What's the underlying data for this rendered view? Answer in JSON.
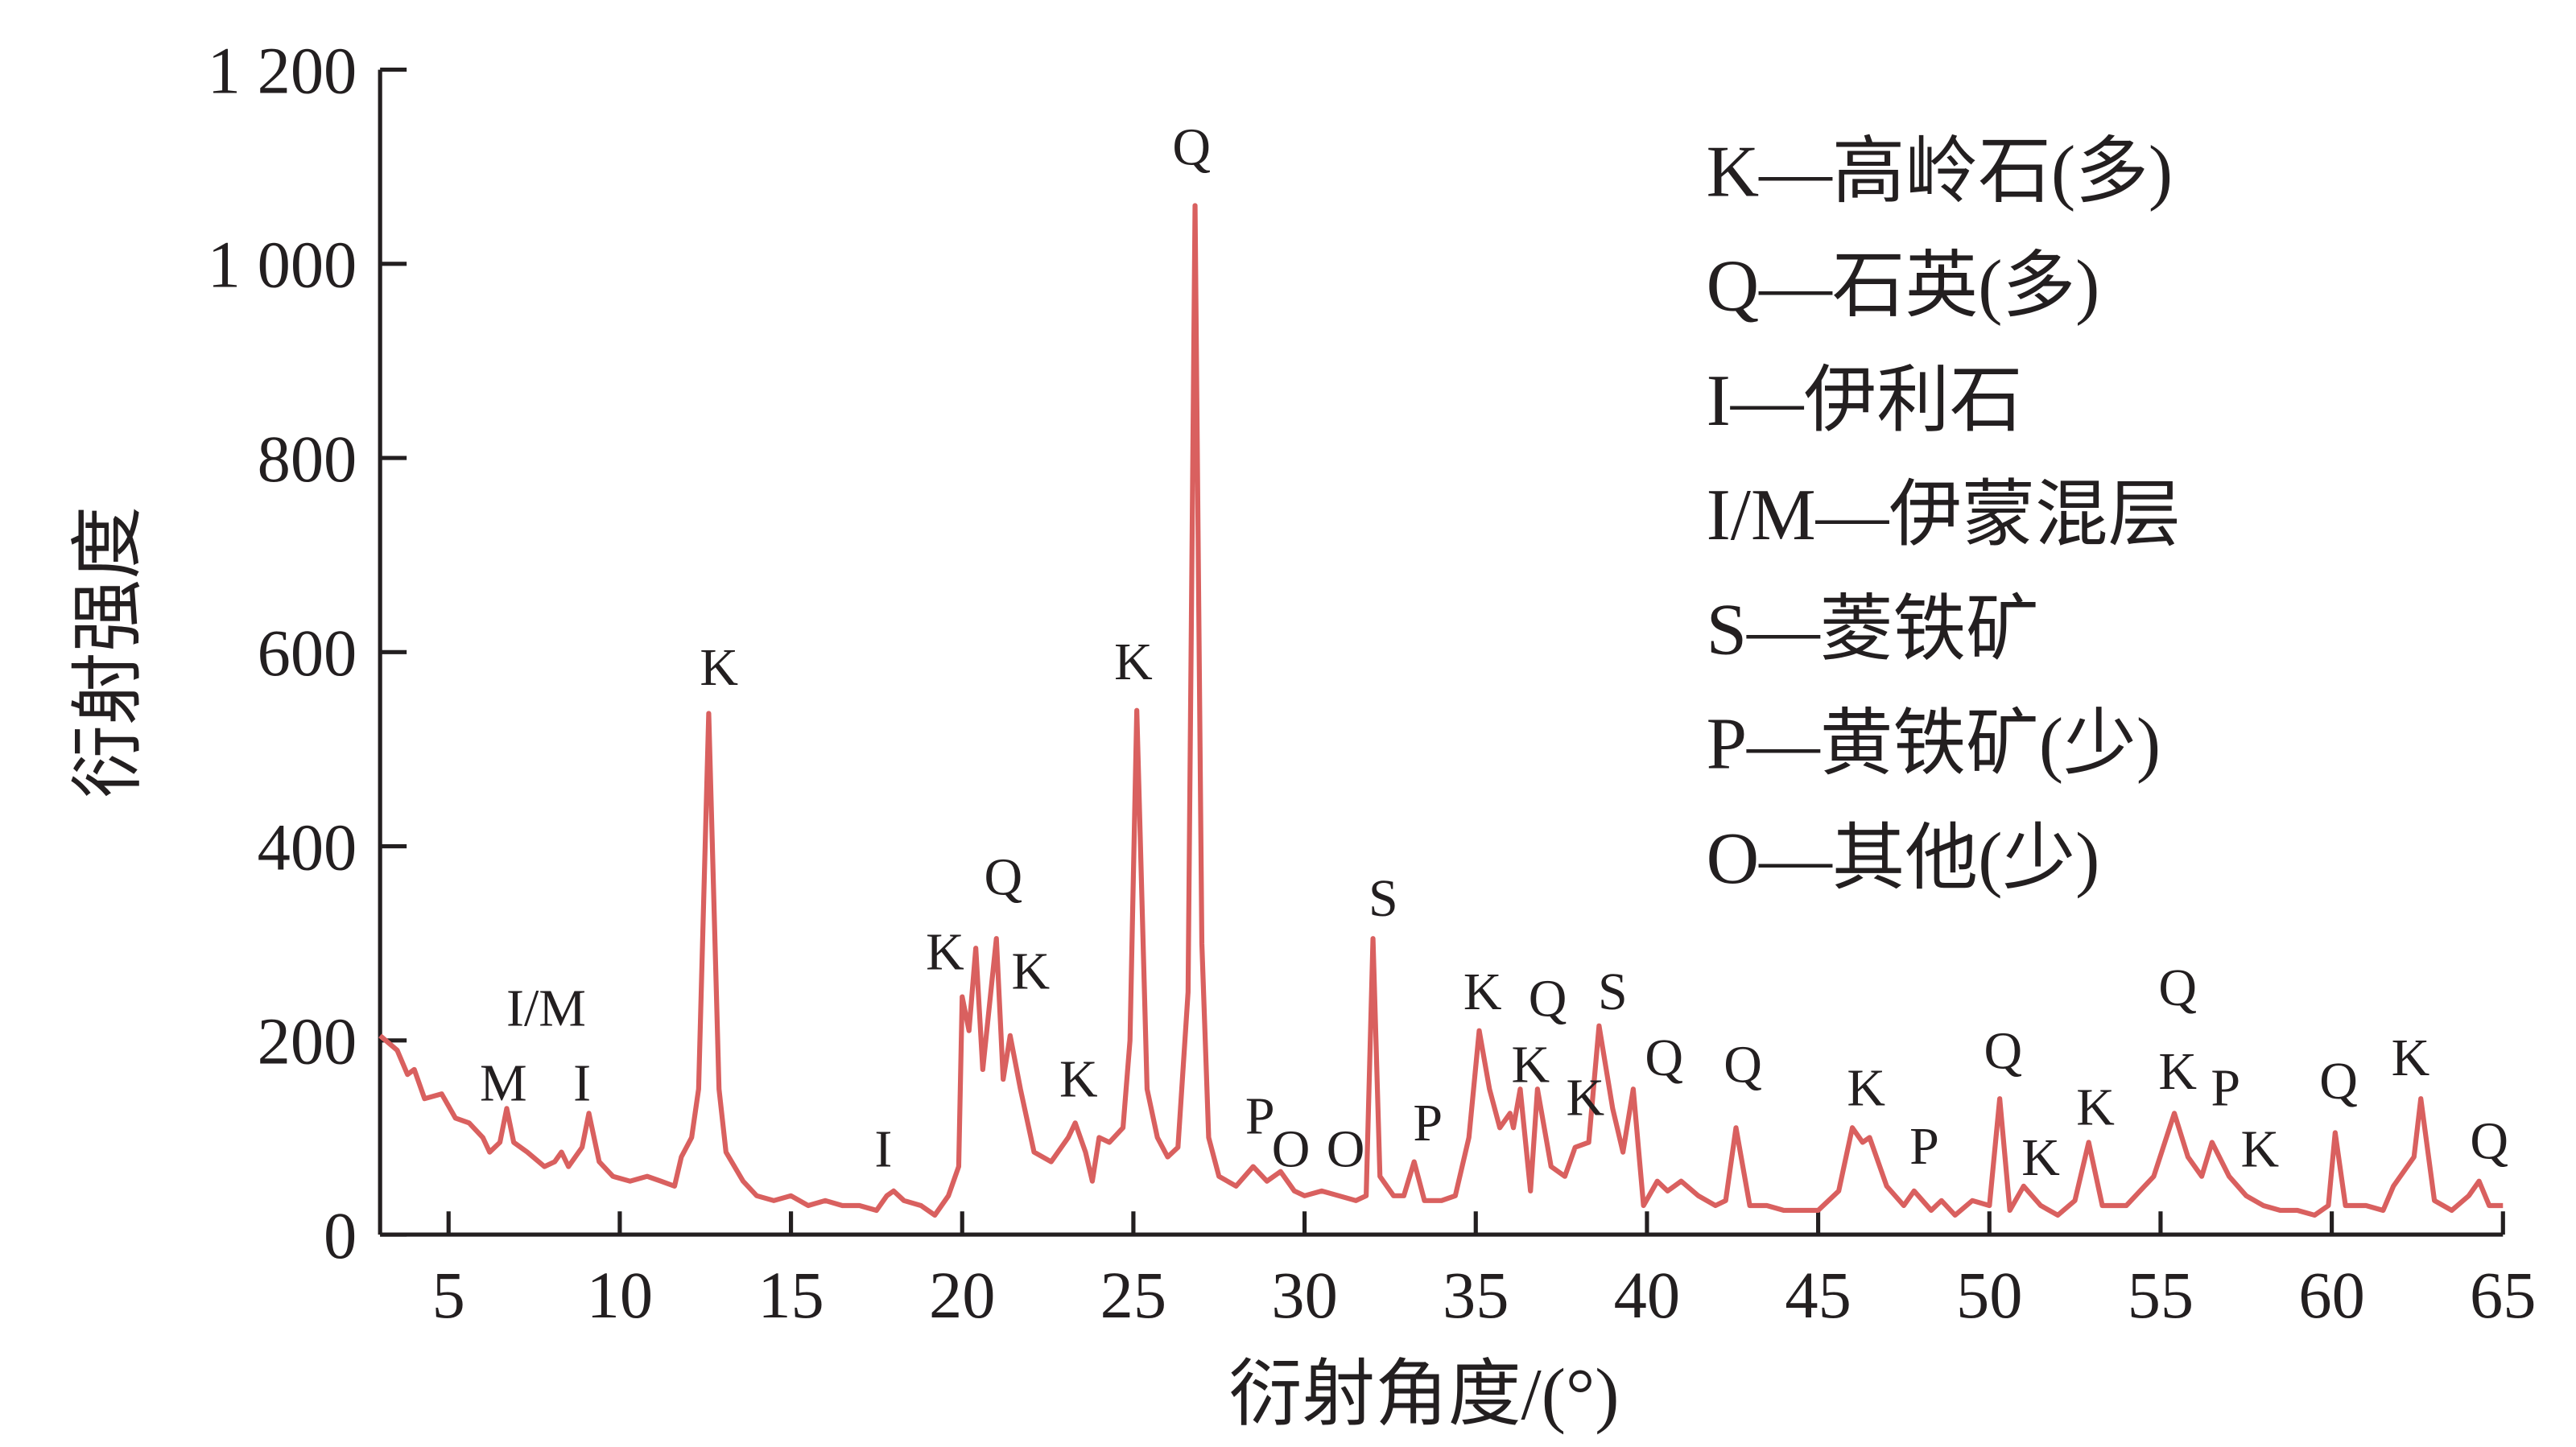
{
  "chart_data": {
    "type": "line",
    "xlabel": "衍射角度/(°)",
    "ylabel": "衍射强度",
    "xlim": [
      3,
      65
    ],
    "ylim": [
      0,
      1200
    ],
    "xticks": [
      5,
      10,
      15,
      20,
      25,
      30,
      35,
      40,
      45,
      50,
      55,
      60,
      65
    ],
    "yticks": [
      0,
      200,
      400,
      600,
      800,
      {
        "value": 1000,
        "label": "1 000"
      },
      {
        "value": 1200,
        "label": "1 200"
      }
    ],
    "series": [
      {
        "color": "#d9605f",
        "x": [
          3.0,
          3.5,
          3.8,
          4.0,
          4.3,
          4.8,
          5.2,
          5.6,
          6.0,
          6.2,
          6.5,
          6.7,
          6.9,
          7.3,
          7.8,
          8.1,
          8.3,
          8.5,
          8.9,
          9.1,
          9.4,
          9.8,
          10.3,
          10.8,
          11.2,
          11.6,
          11.8,
          12.1,
          12.3,
          12.6,
          12.9,
          13.1,
          13.6,
          14.0,
          14.5,
          15.0,
          15.5,
          16.0,
          16.5,
          17.0,
          17.5,
          17.8,
          18.0,
          18.3,
          18.8,
          19.2,
          19.6,
          19.9,
          20.0,
          20.2,
          20.4,
          20.6,
          21.0,
          21.2,
          21.4,
          21.7,
          22.1,
          22.6,
          23.1,
          23.3,
          23.6,
          23.8,
          24.0,
          24.3,
          24.7,
          24.9,
          25.1,
          25.4,
          25.7,
          26.0,
          26.3,
          26.6,
          26.8,
          27.0,
          27.2,
          27.5,
          28.0,
          28.5,
          28.9,
          29.3,
          29.7,
          30.0,
          30.5,
          31.0,
          31.5,
          31.8,
          32.0,
          32.2,
          32.6,
          32.9,
          33.2,
          33.5,
          34.0,
          34.4,
          34.8,
          35.1,
          35.4,
          35.7,
          36.0,
          36.1,
          36.3,
          36.6,
          36.8,
          37.2,
          37.6,
          37.9,
          38.3,
          38.6,
          39.0,
          39.3,
          39.6,
          39.9,
          40.3,
          40.6,
          41.0,
          41.5,
          42.0,
          42.3,
          42.6,
          43.0,
          43.5,
          44.0,
          45.0,
          45.6,
          46.0,
          46.3,
          46.5,
          47.0,
          47.5,
          47.8,
          48.3,
          48.6,
          49.0,
          49.5,
          50.0,
          50.3,
          50.6,
          51.0,
          51.5,
          52.0,
          52.5,
          52.9,
          53.3,
          54.0,
          54.8,
          55.4,
          55.8,
          56.2,
          56.5,
          57.0,
          57.5,
          58.0,
          58.5,
          59.0,
          59.5,
          59.9,
          60.1,
          60.4,
          61.0,
          61.5,
          61.8,
          62.4,
          62.6,
          63.0,
          63.5,
          64.0,
          64.3,
          64.6,
          65.0
        ],
        "values": [
          205,
          190,
          165,
          170,
          140,
          145,
          120,
          115,
          100,
          85,
          95,
          130,
          95,
          85,
          70,
          75,
          85,
          70,
          90,
          125,
          75,
          60,
          55,
          60,
          55,
          50,
          80,
          100,
          150,
          537,
          150,
          85,
          55,
          40,
          35,
          40,
          30,
          35,
          30,
          30,
          25,
          40,
          45,
          35,
          30,
          20,
          40,
          70,
          245,
          210,
          295,
          170,
          305,
          160,
          205,
          150,
          85,
          75,
          100,
          115,
          85,
          55,
          100,
          95,
          110,
          200,
          540,
          150,
          100,
          80,
          90,
          250,
          1060,
          300,
          100,
          60,
          50,
          70,
          55,
          65,
          45,
          40,
          45,
          40,
          35,
          40,
          305,
          60,
          40,
          40,
          75,
          35,
          35,
          40,
          100,
          210,
          150,
          110,
          125,
          110,
          150,
          45,
          150,
          70,
          60,
          90,
          95,
          215,
          130,
          85,
          150,
          30,
          55,
          45,
          55,
          40,
          30,
          35,
          110,
          30,
          30,
          25,
          25,
          45,
          110,
          95,
          100,
          50,
          30,
          45,
          25,
          35,
          20,
          35,
          30,
          140,
          25,
          50,
          30,
          20,
          35,
          95,
          30,
          30,
          60,
          125,
          80,
          60,
          95,
          60,
          40,
          30,
          25,
          25,
          20,
          30,
          105,
          30,
          30,
          25,
          50,
          80,
          140,
          35,
          25,
          40,
          55,
          30,
          30
        ]
      }
    ],
    "annotations": [
      {
        "text": "M",
        "x": 6.6,
        "y": 157
      },
      {
        "text": "I/M",
        "x": 7.85,
        "y": 234
      },
      {
        "text": "I",
        "x": 8.9,
        "y": 157
      },
      {
        "text": "K",
        "x": 12.9,
        "y": 585
      },
      {
        "text": "I",
        "x": 17.7,
        "y": 89
      },
      {
        "text": "K",
        "x": 19.5,
        "y": 292
      },
      {
        "text": "Q",
        "x": 21.2,
        "y": 369
      },
      {
        "text": "K",
        "x": 22.0,
        "y": 272
      },
      {
        "text": "K",
        "x": 23.4,
        "y": 161
      },
      {
        "text": "K",
        "x": 25.0,
        "y": 591
      },
      {
        "text": "Q",
        "x": 26.7,
        "y": 1121
      },
      {
        "text": "P",
        "x": 28.7,
        "y": 123
      },
      {
        "text": "O",
        "x": 29.6,
        "y": 89
      },
      {
        "text": "O",
        "x": 31.2,
        "y": 89
      },
      {
        "text": "S",
        "x": 32.3,
        "y": 347
      },
      {
        "text": "P",
        "x": 33.6,
        "y": 116
      },
      {
        "text": "K",
        "x": 35.2,
        "y": 251
      },
      {
        "text": "Q",
        "x": 37.1,
        "y": 244
      },
      {
        "text": "K",
        "x": 36.6,
        "y": 176
      },
      {
        "text": "K",
        "x": 38.2,
        "y": 142
      },
      {
        "text": "S",
        "x": 39.0,
        "y": 251
      },
      {
        "text": "Q",
        "x": 40.5,
        "y": 183
      },
      {
        "text": "Q",
        "x": 42.8,
        "y": 176
      },
      {
        "text": "K",
        "x": 46.4,
        "y": 152
      },
      {
        "text": "P",
        "x": 48.1,
        "y": 92
      },
      {
        "text": "Q",
        "x": 50.4,
        "y": 190
      },
      {
        "text": "K",
        "x": 51.5,
        "y": 80
      },
      {
        "text": "K",
        "x": 53.1,
        "y": 132
      },
      {
        "text": "Q",
        "x": 55.5,
        "y": 255
      },
      {
        "text": "K",
        "x": 55.5,
        "y": 169
      },
      {
        "text": "P",
        "x": 56.9,
        "y": 152
      },
      {
        "text": "K",
        "x": 57.9,
        "y": 89
      },
      {
        "text": "Q",
        "x": 60.2,
        "y": 159
      },
      {
        "text": "K",
        "x": 62.3,
        "y": 183
      },
      {
        "text": "Q",
        "x": 64.6,
        "y": 97
      }
    ],
    "legend": [
      "K—高岭石(多)",
      "Q—石英(多)",
      "I—伊利石",
      "I/M—伊蒙混层",
      "S—菱铁矿",
      "P—黄铁矿(少)",
      "O—其他(少)"
    ]
  }
}
